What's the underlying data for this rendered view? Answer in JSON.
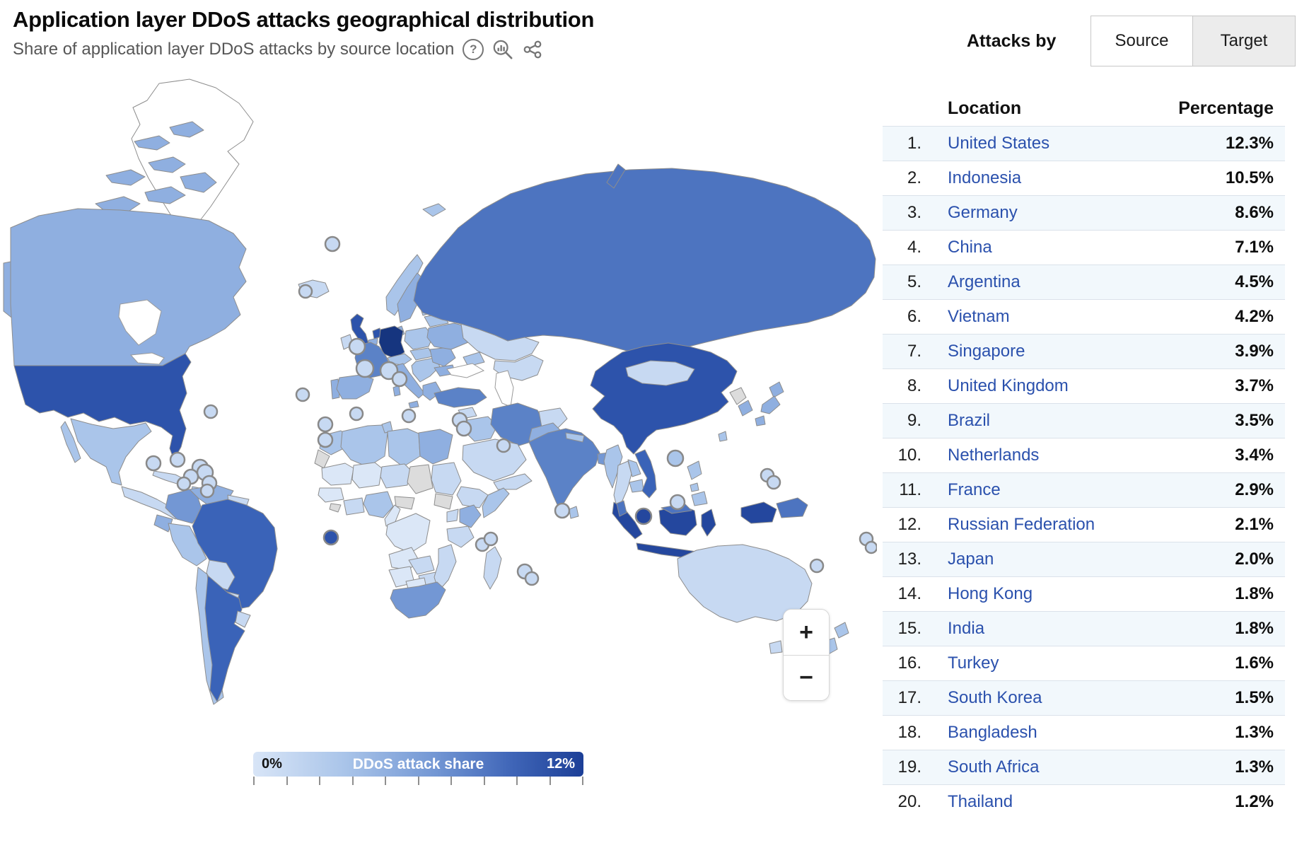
{
  "header": {
    "title": "Application layer DDoS attacks geographical distribution",
    "subtitle": "Share of application layer DDoS attacks by source location",
    "help_icon": "?",
    "icons": [
      "help-icon",
      "magnifier-chart-icon",
      "share-icon"
    ]
  },
  "controls": {
    "label": "Attacks by",
    "options": [
      {
        "label": "Source",
        "active": true
      },
      {
        "label": "Target",
        "active": false
      }
    ]
  },
  "table": {
    "columns": {
      "location": "Location",
      "percentage": "Percentage"
    },
    "rows": [
      {
        "rank": "1.",
        "location": "United States",
        "percentage": "12.3%"
      },
      {
        "rank": "2.",
        "location": "Indonesia",
        "percentage": "10.5%"
      },
      {
        "rank": "3.",
        "location": "Germany",
        "percentage": "8.6%"
      },
      {
        "rank": "4.",
        "location": "China",
        "percentage": "7.1%"
      },
      {
        "rank": "5.",
        "location": "Argentina",
        "percentage": "4.5%"
      },
      {
        "rank": "6.",
        "location": "Vietnam",
        "percentage": "4.2%"
      },
      {
        "rank": "7.",
        "location": "Singapore",
        "percentage": "3.9%"
      },
      {
        "rank": "8.",
        "location": "United Kingdom",
        "percentage": "3.7%"
      },
      {
        "rank": "9.",
        "location": "Brazil",
        "percentage": "3.5%"
      },
      {
        "rank": "10.",
        "location": "Netherlands",
        "percentage": "3.4%"
      },
      {
        "rank": "11.",
        "location": "France",
        "percentage": "2.9%"
      },
      {
        "rank": "12.",
        "location": "Russian Federation",
        "percentage": "2.1%"
      },
      {
        "rank": "13.",
        "location": "Japan",
        "percentage": "2.0%"
      },
      {
        "rank": "14.",
        "location": "Hong Kong",
        "percentage": "1.8%"
      },
      {
        "rank": "15.",
        "location": "India",
        "percentage": "1.8%"
      },
      {
        "rank": "16.",
        "location": "Turkey",
        "percentage": "1.6%"
      },
      {
        "rank": "17.",
        "location": "South Korea",
        "percentage": "1.5%"
      },
      {
        "rank": "18.",
        "location": "Bangladesh",
        "percentage": "1.3%"
      },
      {
        "rank": "19.",
        "location": "South Africa",
        "percentage": "1.3%"
      },
      {
        "rank": "20.",
        "location": "Thailand",
        "percentage": "1.2%"
      }
    ]
  },
  "legend": {
    "min": "0%",
    "label": "DDoS attack share",
    "max": "12%"
  },
  "map_controls": {
    "zoom_in": "+",
    "zoom_out": "−"
  },
  "colors": {
    "link_blue": "#2b51ad",
    "row_stripe": "#f2f8fc",
    "no_data_gray": "#dcdcdc",
    "scale": [
      "#dbe7f7",
      "#c7d9f2",
      "#aac5ea",
      "#8fafe0",
      "#7397d4",
      "#5b82c7",
      "#4d74c0",
      "#3a63b8",
      "#2d53ab",
      "#24479e",
      "#16357f"
    ],
    "legend_gradient": [
      "#d8e5f7",
      "#1c3f97"
    ]
  },
  "chart_data": {
    "type": "heatmap",
    "subtype": "world-choropleth",
    "title": "Application layer DDoS attacks geographical distribution",
    "subtitle": "Share of application layer DDoS attacks by source location",
    "legend_label": "DDoS attack share",
    "value_range": [
      0,
      12
    ],
    "unit": "%",
    "categories": [
      "United States",
      "Indonesia",
      "Germany",
      "China",
      "Argentina",
      "Vietnam",
      "Singapore",
      "United Kingdom",
      "Brazil",
      "Netherlands",
      "France",
      "Russian Federation",
      "Japan",
      "Hong Kong",
      "India",
      "Turkey",
      "South Korea",
      "Bangladesh",
      "South Africa",
      "Thailand"
    ],
    "values": [
      12.3,
      10.5,
      8.6,
      7.1,
      4.5,
      4.2,
      3.9,
      3.7,
      3.5,
      3.4,
      2.9,
      2.1,
      2.0,
      1.8,
      1.8,
      1.6,
      1.5,
      1.3,
      1.3,
      1.2
    ]
  }
}
